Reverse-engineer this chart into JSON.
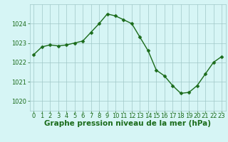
{
  "x": [
    0,
    1,
    2,
    3,
    4,
    5,
    6,
    7,
    8,
    9,
    10,
    11,
    12,
    13,
    14,
    15,
    16,
    17,
    18,
    19,
    20,
    21,
    22,
    23
  ],
  "y": [
    1022.4,
    1022.8,
    1022.9,
    1022.85,
    1022.9,
    1023.0,
    1023.1,
    1023.55,
    1024.0,
    1024.5,
    1024.4,
    1024.2,
    1024.0,
    1023.3,
    1022.6,
    1021.6,
    1021.3,
    1020.8,
    1020.4,
    1020.45,
    1020.8,
    1021.4,
    1022.0,
    1022.3
  ],
  "line_color": "#1a6b1a",
  "marker_color": "#1a6b1a",
  "bg_color": "#d6f5f5",
  "grid_color": "#a0c8c8",
  "xlabel": "Graphe pression niveau de la mer (hPa)",
  "xlabel_color": "#1a6b1a",
  "tick_color": "#1a6b1a",
  "ylim": [
    1019.5,
    1025.0
  ],
  "yticks": [
    1020,
    1021,
    1022,
    1023,
    1024
  ],
  "xticks": [
    0,
    1,
    2,
    3,
    4,
    5,
    6,
    7,
    8,
    9,
    10,
    11,
    12,
    13,
    14,
    15,
    16,
    17,
    18,
    19,
    20,
    21,
    22,
    23
  ],
  "xlabel_fontsize": 7.5,
  "tick_fontsize": 6.0,
  "linewidth": 1.0,
  "markersize": 2.5
}
